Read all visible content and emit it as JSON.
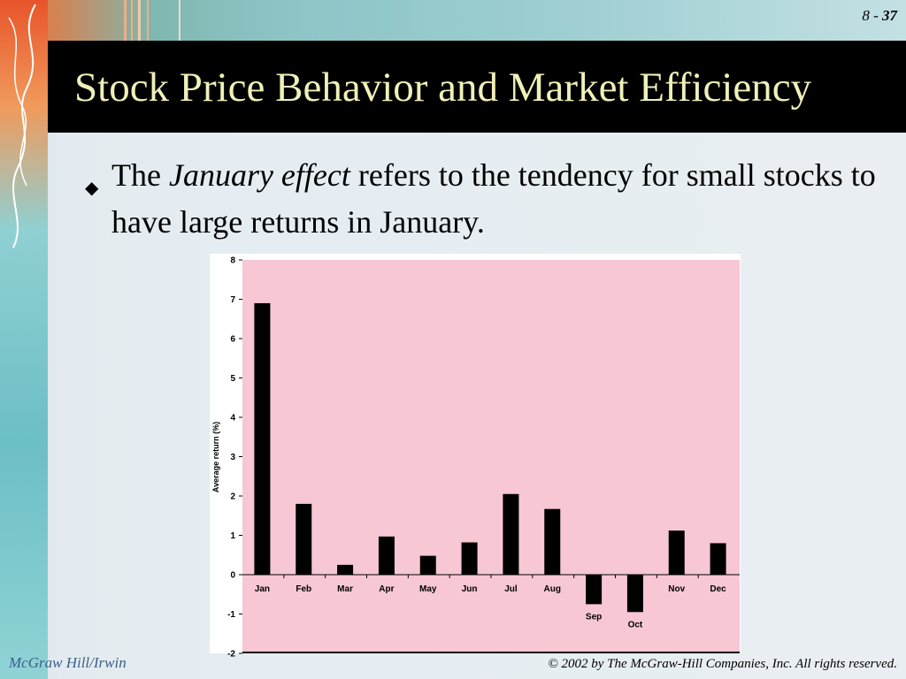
{
  "slide": {
    "number_prefix": "8 - ",
    "number": "37",
    "title": "Stock Price Behavior and Market Efficiency",
    "bullet": {
      "prefix": "The ",
      "emphasis": "January effect",
      "suffix": " refers to the tendency for small stocks to have large returns in January."
    },
    "footer_left": "McGraw Hill/Irwin",
    "footer_right": "© 2002 by The McGraw-Hill Companies, Inc. All rights reserved."
  },
  "colors": {
    "plot_background": "#f7c7d4",
    "bar": "#000000",
    "title_text": "#f0f0b8"
  },
  "chart_data": {
    "type": "bar",
    "categories": [
      "Jan",
      "Feb",
      "Mar",
      "Apr",
      "May",
      "Jun",
      "Jul",
      "Aug",
      "Sep",
      "Oct",
      "Nov",
      "Dec"
    ],
    "values": [
      6.9,
      1.8,
      0.25,
      0.97,
      0.48,
      0.82,
      2.05,
      1.67,
      -0.75,
      -0.95,
      1.12,
      0.8
    ],
    "title": "",
    "xlabel": "",
    "ylabel": "Average return (%)",
    "ylim": [
      -2,
      8
    ],
    "yticks": [
      "8",
      "7",
      "6",
      "5",
      "4",
      "3",
      "2",
      "1",
      "0",
      "-1",
      "-2"
    ],
    "grid": false,
    "legend": "none"
  }
}
